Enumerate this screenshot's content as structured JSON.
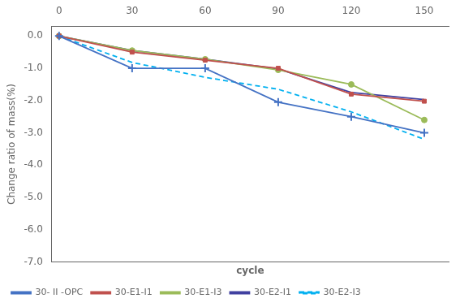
{
  "chart_data": {
    "type": "line",
    "xlabel": "cycle",
    "ylabel": "Change ratio of mass(%)",
    "x": [
      0,
      30,
      60,
      90,
      120,
      150
    ],
    "series": [
      {
        "name": "30- II -OPC",
        "color": "#4472C4",
        "marker": "plus",
        "line_style": "solid",
        "values": [
          0,
          -1.0,
          -1.0,
          -2.05,
          -2.5,
          -3.0
        ]
      },
      {
        "name": "30-E1-I1",
        "color": "#C0504D",
        "marker": "square",
        "line_style": "solid",
        "values": [
          0,
          -0.5,
          -0.75,
          -1.0,
          -1.8,
          -2.02
        ]
      },
      {
        "name": "30-E1-I3",
        "color": "#9BBB59",
        "marker": "circle",
        "line_style": "solid",
        "values": [
          0,
          -0.45,
          -0.72,
          -1.05,
          -1.5,
          -2.6
        ]
      },
      {
        "name": "30-E2-I1",
        "color": "#4040A0",
        "marker": "none",
        "line_style": "solid",
        "values": [
          0,
          -0.45,
          -0.72,
          -1.02,
          -1.75,
          -1.97
        ]
      },
      {
        "name": "30-E2-I3",
        "color": "#00B0F0",
        "marker": "none",
        "line_style": "dashed",
        "values": [
          0,
          -0.82,
          -1.28,
          -1.65,
          -2.35,
          -3.2
        ]
      }
    ],
    "xlim": [
      -3,
      160
    ],
    "ylim": [
      -7.0,
      0.3
    ],
    "xticks": [
      0,
      30,
      60,
      90,
      120,
      150
    ],
    "yticks": [
      {
        "value": 0.0,
        "label": "0.0"
      },
      {
        "value": -1.0,
        "label": "-1.0"
      },
      {
        "value": -2.0,
        "label": "-2.0"
      },
      {
        "value": -3.0,
        "label": "-3.0"
      },
      {
        "value": -4.0,
        "label": "-4.0"
      },
      {
        "value": -5.0,
        "label": "-5.0"
      },
      {
        "value": -6.0,
        "label": "-6.0"
      },
      {
        "value": -7.0,
        "label": "-7.0"
      }
    ],
    "grid": false,
    "legend": "lower left"
  }
}
